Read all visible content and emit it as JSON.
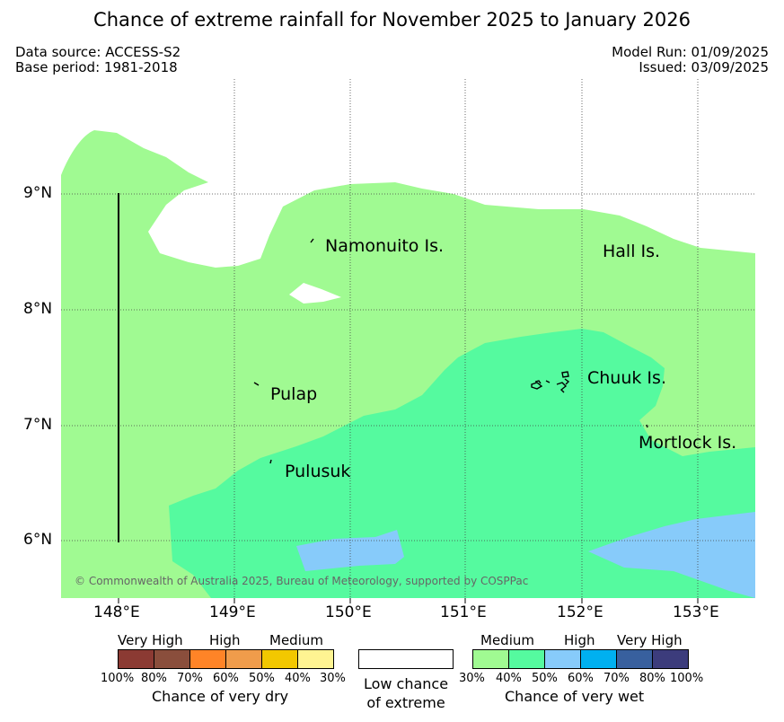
{
  "header": {
    "title": "Chance of extreme rainfall for November 2025 to January 2026",
    "data_source": "Data source: ACCESS-S2",
    "base_period": "Base period: 1981-2018",
    "model_run": "Model Run: 01/09/2025",
    "issued": "Issued: 03/09/2025"
  },
  "map": {
    "lon_labels": [
      "148°E",
      "149°E",
      "150°E",
      "151°E",
      "152°E",
      "153°E"
    ],
    "lat_labels": [
      "9°N",
      "8°N",
      "7°N",
      "6°N"
    ],
    "places": [
      "Namonuito Is.",
      "Hall Is.",
      "Pulap",
      "Chuuk Is.",
      "Mortlock Is.",
      "Pulusuk"
    ],
    "copyright": "© Commonwealth of Australia 2025, Bureau of Meteorology, supported by COSPPac",
    "colors": {
      "wet_30_40": "#a0fa92",
      "wet_40_50": "#55fa9f",
      "wet_50_60": "#87cbfa",
      "low_chance": "#ffffff"
    }
  },
  "legend": {
    "dry": {
      "headers": [
        "Very High",
        "High",
        "Medium"
      ],
      "ticks": [
        "100%",
        "80%",
        "70%",
        "60%",
        "50%",
        "40%",
        "30%"
      ],
      "caption": "Chance of very dry",
      "colors": [
        "#8b3a33",
        "#8a4e3c",
        "#ff8427",
        "#f09c4b",
        "#f2c800",
        "#fff492"
      ]
    },
    "neutral": {
      "line1": "Low chance",
      "line2": "of extreme",
      "color": "#ffffff"
    },
    "wet": {
      "headers": [
        "Medium",
        "High",
        "Very High"
      ],
      "ticks": [
        "30%",
        "40%",
        "50%",
        "60%",
        "70%",
        "80%",
        "100%"
      ],
      "caption": "Chance of very wet",
      "colors": [
        "#a0fa92",
        "#55fa9f",
        "#87cbfa",
        "#00b0f0",
        "#38609e",
        "#3c3c7c"
      ]
    }
  }
}
